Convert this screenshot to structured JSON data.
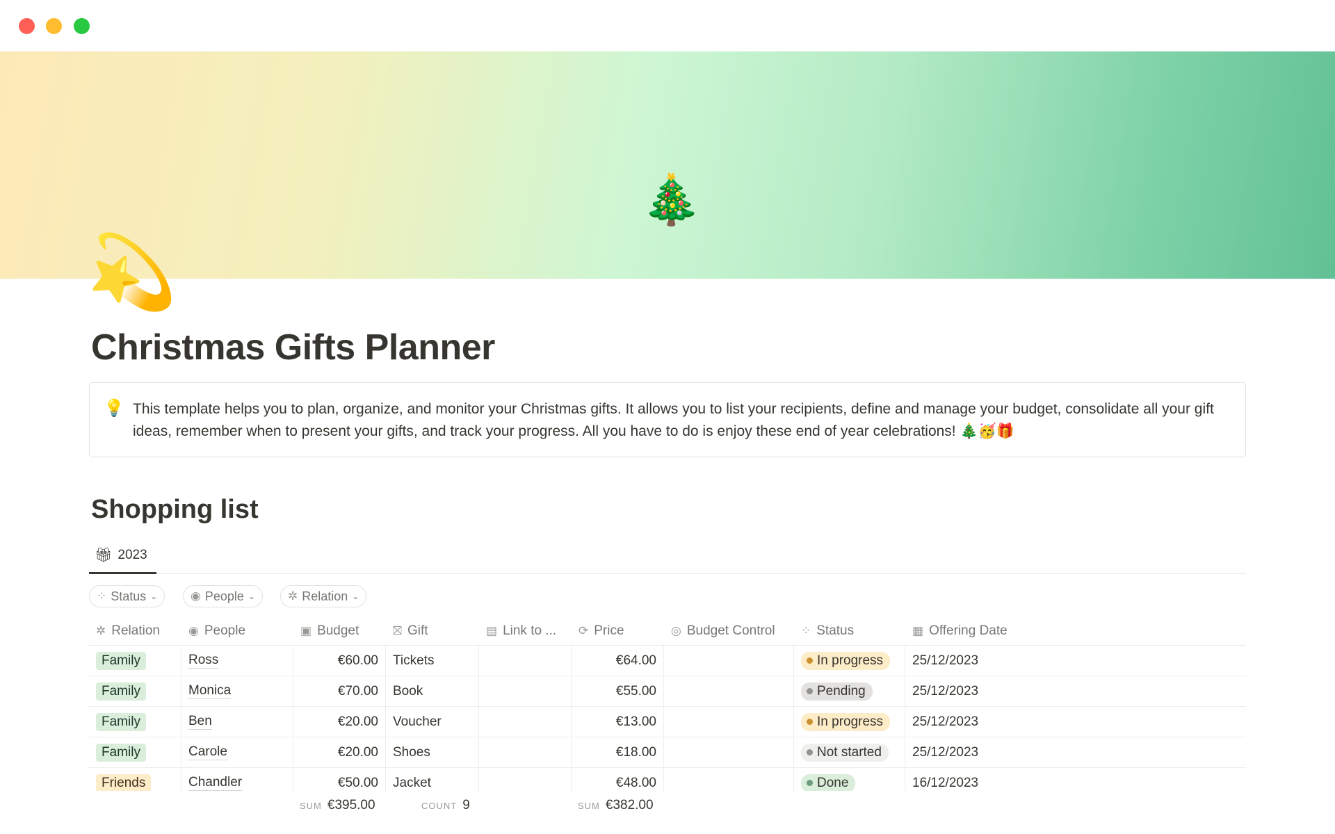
{
  "window": {
    "controls": [
      {
        "name": "close",
        "color": "#ff5f57"
      },
      {
        "name": "minimize",
        "color": "#febc2e"
      },
      {
        "name": "maximize",
        "color": "#28c840"
      }
    ]
  },
  "cover": {
    "emoji": "🎄"
  },
  "page": {
    "icon": "💫",
    "title": "Christmas Gifts Planner"
  },
  "callout": {
    "icon": "💡",
    "text": "This template helps you to plan, organize, and monitor your Christmas gifts. It allows you to list your recipients, define and manage your budget, consolidate all your gift ideas, remember when to present your gifts, and track your progress. All you have to do is enjoy these end of year celebrations! 🎄🥳🎁"
  },
  "section": {
    "title": "Shopping list"
  },
  "view_tab": {
    "icon": "gift-icon",
    "label": "2023"
  },
  "filters": [
    {
      "label": "Status",
      "icon": "status-icon"
    },
    {
      "label": "People",
      "icon": "person-icon"
    },
    {
      "label": "Relation",
      "icon": "atom-icon"
    }
  ],
  "columns": [
    {
      "label": "Relation",
      "icon": "✲"
    },
    {
      "label": "People",
      "icon": "◉"
    },
    {
      "label": "Budget",
      "icon": "▣"
    },
    {
      "label": "Gift",
      "icon": "⛝"
    },
    {
      "label": "Link to ...",
      "icon": "▤"
    },
    {
      "label": "Price",
      "icon": "⟳"
    },
    {
      "label": "Budget Control",
      "icon": "◎"
    },
    {
      "label": "Status",
      "icon": "⁘"
    },
    {
      "label": "Offering Date",
      "icon": "▦"
    }
  ],
  "rows": [
    {
      "relation": "Family",
      "person": "Ross",
      "budget": "€60.00",
      "gift": "Tickets",
      "link": "",
      "price": "€64.00",
      "control": "",
      "status": "In progress",
      "date": "25/12/2023"
    },
    {
      "relation": "Family",
      "person": "Monica",
      "budget": "€70.00",
      "gift": "Book",
      "link": "",
      "price": "€55.00",
      "control": "",
      "status": "Pending",
      "date": "25/12/2023"
    },
    {
      "relation": "Family",
      "person": "Ben",
      "budget": "€20.00",
      "gift": "Voucher",
      "link": "",
      "price": "€13.00",
      "control": "",
      "status": "In progress",
      "date": "25/12/2023"
    },
    {
      "relation": "Family",
      "person": "Carole",
      "budget": "€20.00",
      "gift": "Shoes",
      "link": "",
      "price": "€18.00",
      "control": "",
      "status": "Not started",
      "date": "25/12/2023"
    },
    {
      "relation": "Friends",
      "person": "Chandler",
      "budget": "€50.00",
      "gift": "Jacket",
      "link": "",
      "price": "€48.00",
      "control": "",
      "status": "Done",
      "date": "16/12/2023"
    }
  ],
  "footer": {
    "budget_label": "SUM",
    "budget_value": "€395.00",
    "gift_label": "COUNT",
    "gift_value": "9",
    "price_label": "SUM",
    "price_value": "€382.00"
  },
  "colors": {
    "Family": {
      "bg": "#dbeddb",
      "fg": "#1c3829"
    },
    "Friends": {
      "bg": "#fdecc8",
      "fg": "#402c1b"
    },
    "In progress": {
      "bg": "#fdecc8",
      "dot": "#cb912f"
    },
    "Pending": {
      "bg": "#e3e2e0",
      "dot": "#91918e"
    },
    "Not started": {
      "bg": "#efefed",
      "dot": "#91918e"
    },
    "Done": {
      "bg": "#dbeddb",
      "dot": "#6c9b7d"
    }
  }
}
